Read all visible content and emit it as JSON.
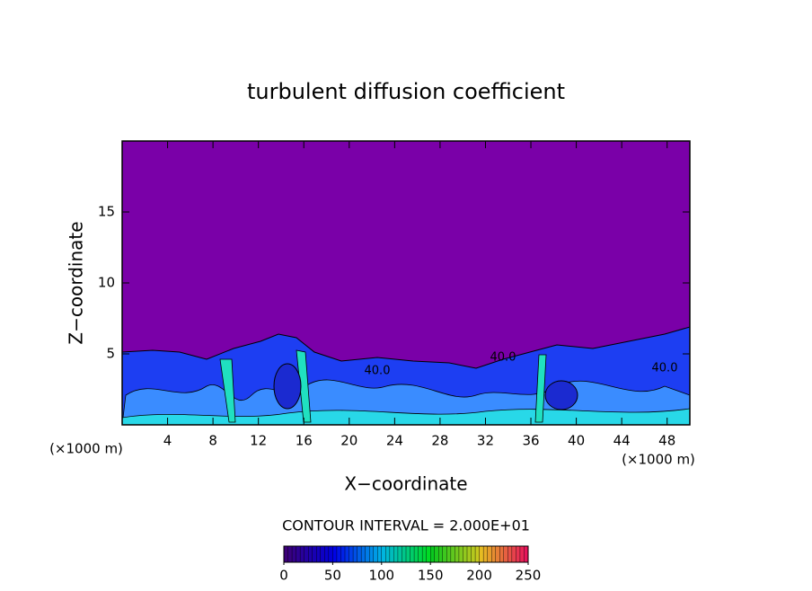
{
  "chart_data": {
    "type": "contour",
    "title": "turbulent diffusion coefficient",
    "xlabel": "X−coordinate",
    "ylabel": "Z−coordinate",
    "x_unit_left": "(×1000 m)",
    "x_unit_right": "(×1000 m)",
    "xlim": [
      0,
      50
    ],
    "xticks": [
      4,
      8,
      12,
      16,
      20,
      24,
      28,
      32,
      36,
      40,
      44,
      48
    ],
    "ylim": [
      0,
      20
    ],
    "yticks": [
      5,
      10,
      15
    ],
    "contour_interval": "CONTOUR INTERVAL = 2.000E+01",
    "contour_labels": [
      "40.0",
      "40.0",
      "40.0"
    ],
    "colorbar_lim": [
      0,
      250
    ],
    "colorbar_ticks": [
      0,
      50,
      100,
      150,
      200,
      250
    ]
  }
}
